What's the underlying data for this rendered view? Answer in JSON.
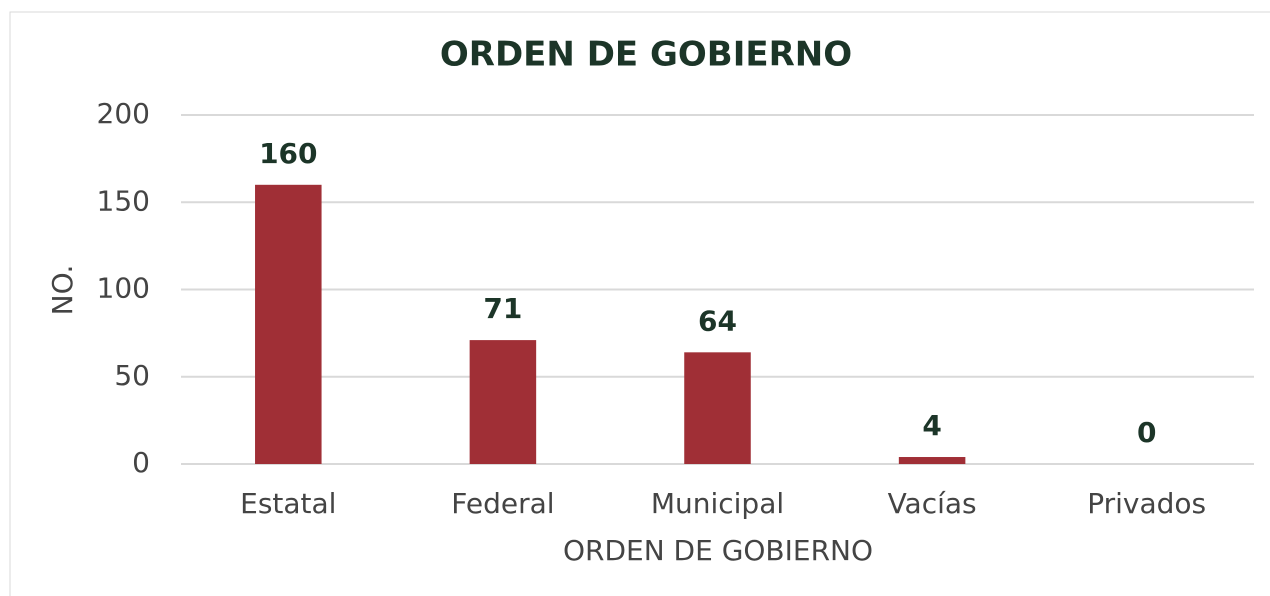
{
  "chart_data": {
    "type": "bar",
    "title": "ORDEN DE GOBIERNO",
    "x_label": "ORDEN DE GOBIERNO",
    "y_label": "NO.",
    "categories": [
      "Estatal",
      "Federal",
      "Municipal",
      "Vacías",
      "Privados"
    ],
    "values": [
      160,
      71,
      64,
      4,
      0
    ],
    "color": "#a02f36",
    "ylim": [
      0,
      200
    ],
    "yticks": [
      0,
      50,
      100,
      150,
      200
    ],
    "grid": true
  }
}
